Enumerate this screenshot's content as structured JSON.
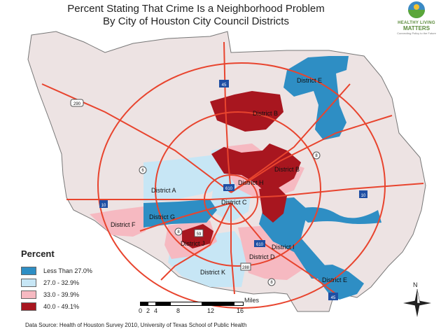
{
  "title_line1": "Percent Stating That Crime Is a Neighborhood Problem",
  "title_line2": "By City of Houston City Council Districts",
  "logo": {
    "line1": "HEALTHY LIVING",
    "line2": "MATTERS",
    "line3": "Connecting Policy to the Future"
  },
  "legend": {
    "title": "Percent",
    "items": [
      {
        "label": "Less Than 27.0%",
        "color": "#2e8ec4"
      },
      {
        "label": "27.0 - 32.9%",
        "color": "#c7e6f5"
      },
      {
        "label": "33.0 - 39.9%",
        "color": "#f6b9c1"
      },
      {
        "label": "40.0 - 49.1%",
        "color": "#a8161f"
      }
    ]
  },
  "districts": [
    {
      "name": "District E",
      "value": "Less Than 27.0%"
    },
    {
      "name": "District B",
      "value": "40.0 - 49.1%"
    },
    {
      "name": "District B",
      "value": "40.0 - 49.1%"
    },
    {
      "name": "District H",
      "value": "33.0 - 39.9%"
    },
    {
      "name": "District A",
      "value": "27.0 - 32.9%"
    },
    {
      "name": "District C",
      "value": "27.0 - 32.9%"
    },
    {
      "name": "District F",
      "value": "33.0 - 39.9%"
    },
    {
      "name": "District G",
      "value": "Less Than 27.0%"
    },
    {
      "name": "District J",
      "value": "33.0 - 39.9%"
    },
    {
      "name": "District I",
      "value": "Less Than 27.0%"
    },
    {
      "name": "District D",
      "value": "33.0 - 39.9%"
    },
    {
      "name": "District K",
      "value": "27.0 - 32.9%"
    },
    {
      "name": "District E",
      "value": "Less Than 27.0%"
    }
  ],
  "route_labels": [
    "45",
    "290",
    "8",
    "6",
    "610",
    "10",
    "10",
    "59",
    "8",
    "610",
    "288",
    "8",
    "45"
  ],
  "scale": {
    "ticks": [
      "0",
      "2",
      "4",
      "8",
      "12",
      "16"
    ],
    "unit": "Miles"
  },
  "north_label": "N",
  "source": "Data Source: Health of Houston Survey 2010, University of Texas School of Public Health",
  "colors": {
    "county_fill": "#ede3e3",
    "road": "#e8442e",
    "outline": "#777777"
  }
}
